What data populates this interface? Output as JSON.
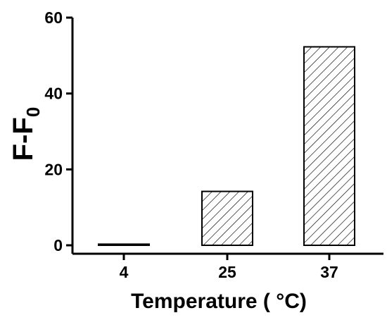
{
  "chart_data": {
    "type": "bar",
    "categories": [
      "4",
      "25",
      "37"
    ],
    "values": [
      0.3,
      14.2,
      52.3
    ],
    "ylim": [
      0,
      60
    ],
    "yticks": [
      0,
      20,
      40,
      60
    ],
    "xlabel": "Temperature ( °C)",
    "ylabel_main": "F-F",
    "ylabel_sub": "0",
    "bar_fill": "hatched (diagonal lines)",
    "bar_color": "#000000",
    "grid": false,
    "legend": "none"
  }
}
